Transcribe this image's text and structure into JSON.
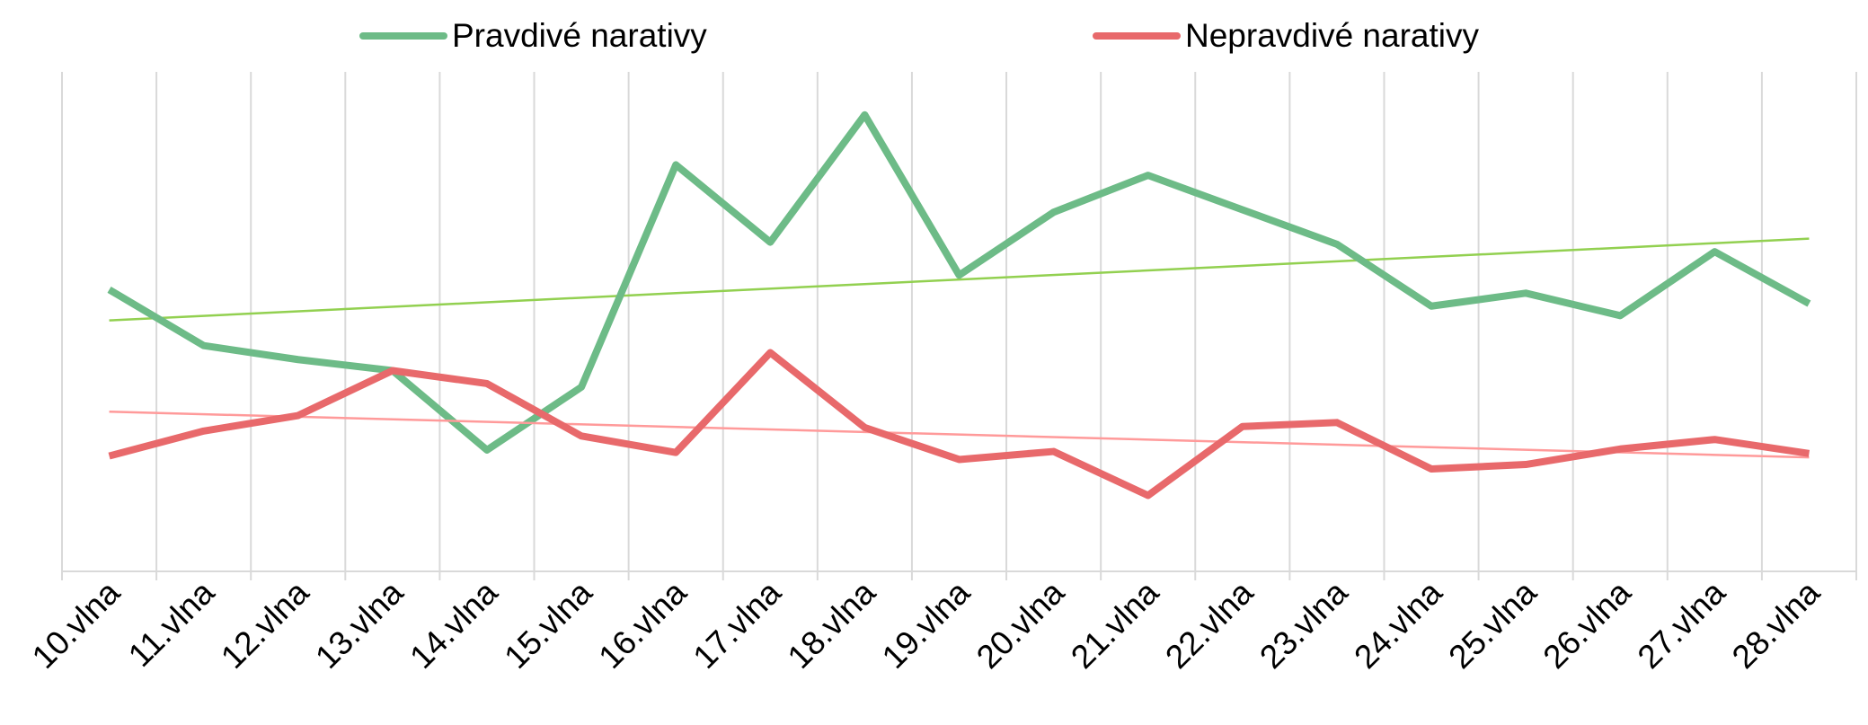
{
  "chart_data": {
    "type": "line",
    "categories": [
      "10.vlna",
      "11.vlna",
      "12.vlna",
      "13.vlna",
      "14.vlna",
      "15.vlna",
      "16.vlna",
      "17.vlna",
      "18.vlna",
      "19.vlna",
      "20.vlna",
      "21.vlna",
      "22.vlna",
      "23.vlna",
      "24.vlna",
      "25.vlna",
      "26.vlna",
      "27.vlna",
      "28.vlna"
    ],
    "series": [
      {
        "name": "Pravdivé narativy",
        "color": "#6dbb87",
        "trend_color": "#92d050",
        "values": [
          56.4,
          45.2,
          42.4,
          40.2,
          24.3,
          36.9,
          81.4,
          65.9,
          91.4,
          59.3,
          71.9,
          79.3,
          72.4,
          65.5,
          53.1,
          55.7,
          51.2,
          64.0,
          53.6
        ]
      },
      {
        "name": "Nepravdivé narativy",
        "color": "#e8696b",
        "trend_color": "#ff9a9a",
        "values": [
          23.1,
          28.1,
          31.2,
          40.2,
          37.6,
          27.1,
          23.8,
          43.8,
          28.8,
          22.4,
          24.0,
          15.2,
          29.0,
          29.8,
          20.5,
          21.4,
          24.5,
          26.4,
          23.6
        ]
      }
    ],
    "ylim": [
      0,
      100
    ],
    "trendline": true,
    "legend": "top",
    "grid": true
  }
}
